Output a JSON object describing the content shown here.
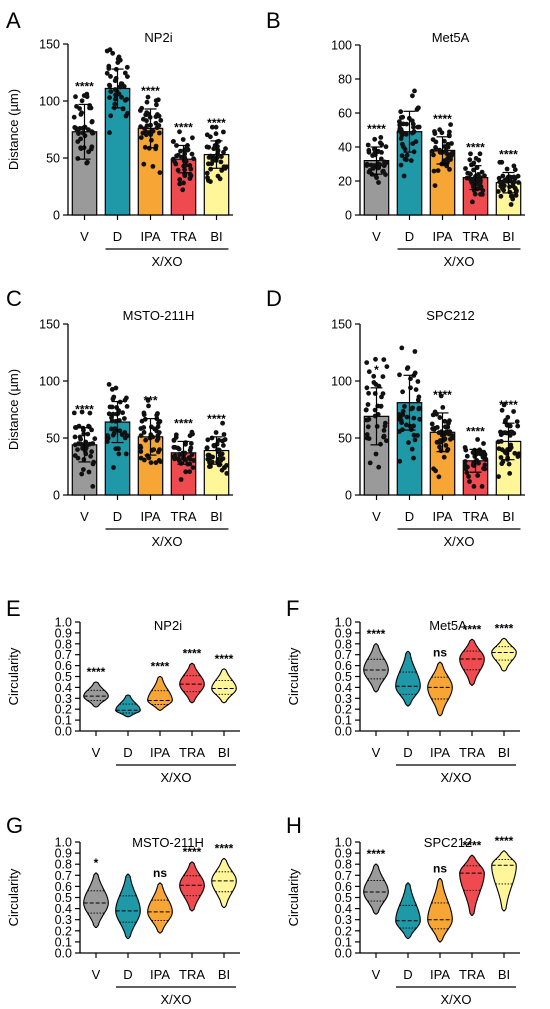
{
  "colors": {
    "V": "#9a9a9a",
    "D": "#1f98a8",
    "IPA": "#f7a534",
    "TRA": "#ef4a4f",
    "BI": "#fff69a"
  },
  "chart_data": [
    {
      "panel": "A",
      "type": "bar",
      "title": "NP2i",
      "ylabel": "Distance (µm)",
      "ylim": [
        0,
        150
      ],
      "yticks": [
        0,
        50,
        100,
        150
      ],
      "categories": [
        "V",
        "D",
        "IPA",
        "TRA",
        "BI"
      ],
      "values": [
        73,
        111,
        76,
        49,
        53
      ],
      "errors": [
        24,
        17,
        17,
        12,
        12
      ],
      "significance": [
        "****",
        "",
        "****",
        "****",
        "****"
      ],
      "group_label": "X/XO"
    },
    {
      "panel": "B",
      "type": "bar",
      "title": "Met5A",
      "ylabel": "",
      "ylim": [
        0,
        100
      ],
      "yticks": [
        0,
        20,
        40,
        60,
        80,
        100
      ],
      "categories": [
        "V",
        "D",
        "IPA",
        "TRA",
        "BI"
      ],
      "values": [
        32,
        49,
        38,
        22,
        19
      ],
      "errors": [
        8,
        12,
        8,
        7,
        6
      ],
      "significance": [
        "****",
        "",
        "****",
        "****",
        "****"
      ],
      "group_label": "X/XO"
    },
    {
      "panel": "C",
      "type": "bar",
      "title": "MSTO-211H",
      "ylabel": "Distance (µm)",
      "ylim": [
        0,
        150
      ],
      "yticks": [
        0,
        50,
        100,
        150
      ],
      "categories": [
        "V",
        "D",
        "IPA",
        "TRA",
        "BI"
      ],
      "values": [
        44,
        64,
        51,
        37,
        39
      ],
      "errors": [
        15,
        18,
        16,
        10,
        12
      ],
      "significance": [
        "****",
        "",
        "***",
        "****",
        "****"
      ],
      "group_label": "X/XO"
    },
    {
      "panel": "D",
      "type": "bar",
      "title": "SPC212",
      "ylabel": "",
      "ylim": [
        0,
        150
      ],
      "yticks": [
        0,
        50,
        100,
        150
      ],
      "categories": [
        "V",
        "D",
        "IPA",
        "TRA",
        "BI"
      ],
      "values": [
        69,
        81,
        55,
        30,
        47
      ],
      "errors": [
        25,
        24,
        17,
        10,
        16
      ],
      "significance": [
        "*",
        "",
        "****",
        "****",
        "****"
      ],
      "group_label": "X/XO"
    },
    {
      "panel": "E",
      "type": "violin",
      "title": "NP2i",
      "ylabel": "Circularity",
      "ylim": [
        0,
        1.0
      ],
      "yticks": [
        0.0,
        0.1,
        0.2,
        0.3,
        0.4,
        0.5,
        0.6,
        0.7,
        0.8,
        0.9,
        1.0
      ],
      "categories": [
        "V",
        "D",
        "IPA",
        "TRA",
        "BI"
      ],
      "median": [
        0.32,
        0.19,
        0.28,
        0.43,
        0.39
      ],
      "range": [
        [
          0.22,
          0.45
        ],
        [
          0.13,
          0.33
        ],
        [
          0.19,
          0.5
        ],
        [
          0.26,
          0.62
        ],
        [
          0.26,
          0.57
        ]
      ],
      "significance": [
        "****",
        "",
        "****",
        "****",
        "****"
      ],
      "group_label": "X/XO"
    },
    {
      "panel": "F",
      "type": "violin",
      "title": "Met5A",
      "ylabel": "Circularity",
      "ylim": [
        0,
        1.0
      ],
      "yticks": [
        0.0,
        0.1,
        0.2,
        0.3,
        0.4,
        0.5,
        0.6,
        0.7,
        0.8,
        0.9,
        1.0
      ],
      "categories": [
        "V",
        "D",
        "IPA",
        "TRA",
        "BI"
      ],
      "median": [
        0.56,
        0.41,
        0.4,
        0.66,
        0.72
      ],
      "range": [
        [
          0.36,
          0.8
        ],
        [
          0.23,
          0.73
        ],
        [
          0.14,
          0.63
        ],
        [
          0.42,
          0.84
        ],
        [
          0.55,
          0.85
        ]
      ],
      "significance": [
        "****",
        "",
        "ns",
        "****",
        "****"
      ],
      "group_label": "X/XO"
    },
    {
      "panel": "G",
      "type": "violin",
      "title": "MSTO-211H",
      "ylabel": "Circularity",
      "ylim": [
        0,
        1.0
      ],
      "yticks": [
        0.0,
        0.1,
        0.2,
        0.3,
        0.4,
        0.5,
        0.6,
        0.7,
        0.8,
        0.9,
        1.0
      ],
      "categories": [
        "V",
        "D",
        "IPA",
        "TRA",
        "BI"
      ],
      "median": [
        0.45,
        0.38,
        0.37,
        0.61,
        0.65
      ],
      "range": [
        [
          0.23,
          0.72
        ],
        [
          0.13,
          0.71
        ],
        [
          0.18,
          0.63
        ],
        [
          0.38,
          0.82
        ],
        [
          0.41,
          0.85
        ]
      ],
      "significance": [
        "*",
        "",
        "ns",
        "****",
        "****"
      ],
      "group_label": "X/XO"
    },
    {
      "panel": "H",
      "type": "violin",
      "title": "SPC212",
      "ylabel": "Circularity",
      "ylim": [
        0,
        1.0
      ],
      "yticks": [
        0.0,
        0.1,
        0.2,
        0.3,
        0.4,
        0.5,
        0.6,
        0.7,
        0.8,
        0.9,
        1.0
      ],
      "categories": [
        "V",
        "D",
        "IPA",
        "TRA",
        "BI"
      ],
      "median": [
        0.55,
        0.29,
        0.3,
        0.72,
        0.79
      ],
      "range": [
        [
          0.35,
          0.8
        ],
        [
          0.13,
          0.63
        ],
        [
          0.1,
          0.67
        ],
        [
          0.34,
          0.88
        ],
        [
          0.38,
          0.92
        ]
      ],
      "significance": [
        "****",
        "",
        "ns",
        "****",
        "****"
      ],
      "group_label": "X/XO"
    }
  ]
}
